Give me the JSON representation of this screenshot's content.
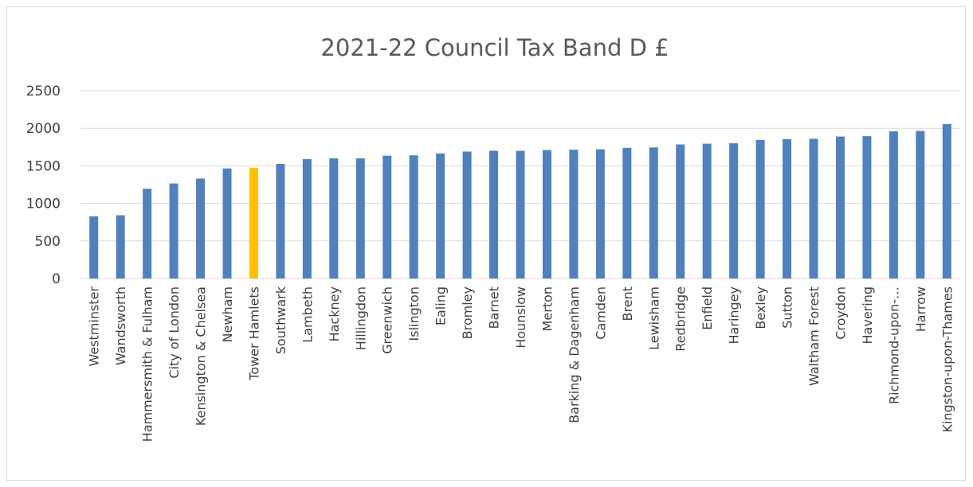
{
  "chart_data": {
    "type": "bar",
    "title": "2021-22 Council Tax Band D £",
    "xlabel": "",
    "ylabel": "",
    "ylim": [
      0,
      2500
    ],
    "yticks": [
      0,
      500,
      1000,
      1500,
      2000,
      2500
    ],
    "grid": true,
    "legend": "none",
    "colors": {
      "default": "#4f81bd",
      "highlight": "#ffc000"
    },
    "highlight_category": "Tower Hamlets",
    "categories": [
      "Westminster",
      "Wandsworth",
      "Hammersmith & Fulham",
      "City of London",
      "Kensington & Chelsea",
      "Newham",
      "Tower Hamlets",
      "Southwark",
      "Lambeth",
      "Hackney",
      "Hillingdon",
      "Greenwich",
      "Islington",
      "Ealing",
      "Bromley",
      "Barnet",
      "Hounslow",
      "Merton",
      "Barking & Dagenham",
      "Camden",
      "Brent",
      "Lewisham",
      "Redbridge",
      "Enfield",
      "Haringey",
      "Bexley",
      "Sutton",
      "Waltham Forest",
      "Croydon",
      "Havering",
      "Richmond-upon-…",
      "Harrow",
      "Kingston-upon-Thames"
    ],
    "values": [
      828,
      842,
      1195,
      1265,
      1330,
      1465,
      1475,
      1525,
      1590,
      1600,
      1600,
      1635,
      1640,
      1665,
      1690,
      1700,
      1700,
      1710,
      1715,
      1720,
      1740,
      1745,
      1785,
      1795,
      1800,
      1845,
      1855,
      1860,
      1890,
      1895,
      1960,
      1965,
      2055
    ]
  }
}
